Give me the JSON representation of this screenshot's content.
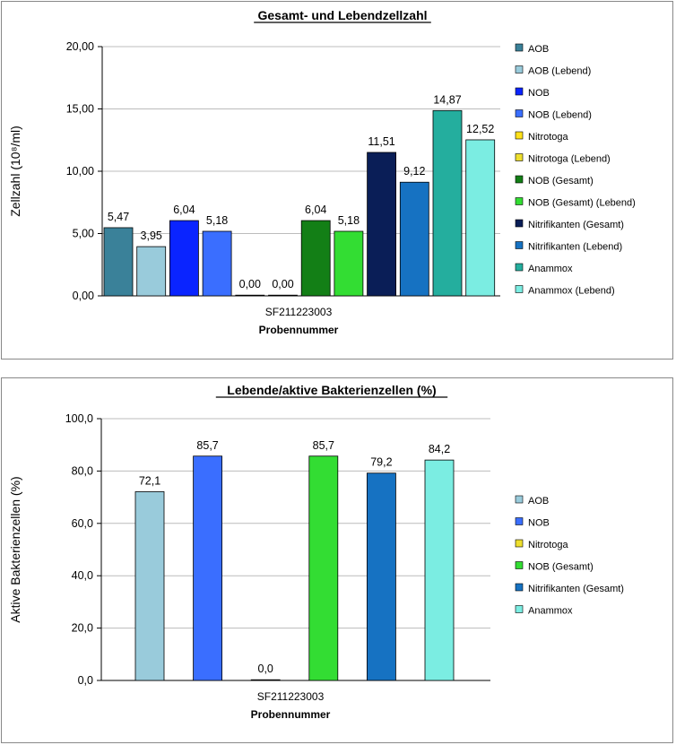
{
  "chart_data": [
    {
      "type": "bar",
      "title": "Gesamt- und Lebendzellzahl",
      "xlabel": "Probennummer",
      "ylabel": "Zellzahl (10⁸/ml)",
      "categories": [
        "SF211223003"
      ],
      "ylim": [
        0,
        20
      ],
      "yticks": [
        "0,00",
        "5,00",
        "10,00",
        "15,00",
        "20,00"
      ],
      "grid": true,
      "legend_position": "right",
      "series": [
        {
          "name": "AOB",
          "values": [
            5.47
          ],
          "label": "5,47",
          "color": "#3A8199"
        },
        {
          "name": "AOB (Lebend)",
          "values": [
            3.95
          ],
          "label": "3,95",
          "color": "#99CBDB"
        },
        {
          "name": "NOB",
          "values": [
            6.04
          ],
          "label": "6,04",
          "color": "#0A24FF"
        },
        {
          "name": "NOB (Lebend)",
          "values": [
            5.18
          ],
          "label": "5,18",
          "color": "#3A6EFF"
        },
        {
          "name": "Nitrotoga",
          "values": [
            0.0
          ],
          "label": "0,00",
          "color": "#FFE11A"
        },
        {
          "name": "Nitrotoga (Lebend)",
          "values": [
            0.0
          ],
          "label": "0,00",
          "color": "#EEDF2E"
        },
        {
          "name": "NOB (Gesamt)",
          "values": [
            6.04
          ],
          "label": "6,04",
          "color": "#137F16"
        },
        {
          "name": "NOB (Gesamt) (Lebend)",
          "values": [
            5.18
          ],
          "label": "5,18",
          "color": "#33DD33"
        },
        {
          "name": "Nitrifikanten (Gesamt)",
          "values": [
            11.51
          ],
          "label": "11,51",
          "color": "#0A1E57"
        },
        {
          "name": "Nitrifikanten (Lebend)",
          "values": [
            9.12
          ],
          "label": "9,12",
          "color": "#1672C2"
        },
        {
          "name": "Anammox",
          "values": [
            14.87
          ],
          "label": "14,87",
          "color": "#24AE9E"
        },
        {
          "name": "Anammox (Lebend)",
          "values": [
            12.52
          ],
          "label": "12,52",
          "color": "#7BEDE2"
        }
      ]
    },
    {
      "type": "bar",
      "title": "Lebende/aktive Bakterienzellen (%)",
      "xlabel": "Probennummer",
      "ylabel": "Aktive Bakterienzellen (%)",
      "categories": [
        "SF211223003"
      ],
      "ylim": [
        0,
        100
      ],
      "yticks": [
        "0,0",
        "20,0",
        "40,0",
        "60,0",
        "80,0",
        "100,0"
      ],
      "grid": true,
      "legend_position": "right",
      "series": [
        {
          "name": "AOB",
          "values": [
            72.1
          ],
          "label": "72,1",
          "color": "#99CBDB"
        },
        {
          "name": "NOB",
          "values": [
            85.7
          ],
          "label": "85,7",
          "color": "#3A6EFF"
        },
        {
          "name": "Nitrotoga",
          "values": [
            0.0
          ],
          "label": "0,0",
          "color": "#EEDF2E"
        },
        {
          "name": "NOB (Gesamt)",
          "values": [
            85.7
          ],
          "label": "85,7",
          "color": "#33DD33"
        },
        {
          "name": "Nitrifikanten (Gesamt)",
          "values": [
            79.2
          ],
          "label": "79,2",
          "color": "#1672C2"
        },
        {
          "name": "Anammox",
          "values": [
            84.2
          ],
          "label": "84,2",
          "color": "#7BEDE2"
        }
      ]
    }
  ]
}
